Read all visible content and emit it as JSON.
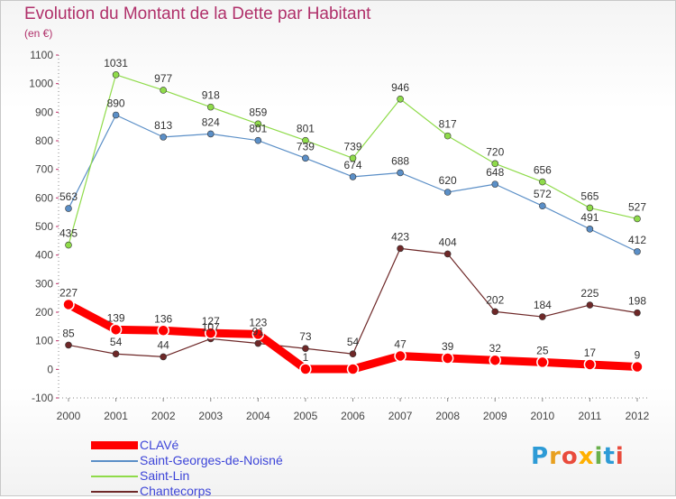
{
  "title": "Evolution du Montant de la Dette par Habitant",
  "unit": "(en €)",
  "logo": {
    "text": "Proxiti",
    "colors": [
      "#2d9bd6",
      "#e8a020",
      "#e94b3c",
      "#ffb000",
      "#6ab04c",
      "#2d9bd6",
      "#e94b3c"
    ]
  },
  "chart_data": {
    "type": "line",
    "title": "Evolution du Montant de la Dette par Habitant",
    "ylabel": "(en €)",
    "xlabel": "",
    "categories": [
      "2000",
      "2001",
      "2002",
      "2003",
      "2004",
      "2005",
      "2006",
      "2007",
      "2008",
      "2009",
      "2010",
      "2011",
      "2012"
    ],
    "ylim": [
      -100,
      1100
    ],
    "yticks": [
      -100,
      0,
      100,
      200,
      300,
      400,
      500,
      600,
      700,
      800,
      900,
      1000,
      1100
    ],
    "grid": false,
    "legend_position": "bottom-left",
    "series": [
      {
        "name": "CLAVé",
        "color": "#ff0000",
        "values": [
          227,
          139,
          136,
          127,
          123,
          1,
          1,
          47,
          39,
          32,
          25,
          17,
          9
        ],
        "labels": [
          "227",
          "139",
          "136",
          "127",
          "123",
          "1",
          "",
          "47",
          "39",
          "32",
          "25",
          "17",
          "9"
        ]
      },
      {
        "name": "Saint-Georges-de-Noisné",
        "color": "#5b8fc7",
        "values": [
          563,
          890,
          813,
          824,
          801,
          739,
          674,
          688,
          620,
          648,
          572,
          491,
          412
        ],
        "labels": [
          "563",
          "890",
          "813",
          "824",
          "801",
          "739",
          "674",
          "688",
          "620",
          "648",
          "572",
          "491",
          "412"
        ]
      },
      {
        "name": "Saint-Lin",
        "color": "#8fdb4a",
        "values": [
          435,
          1031,
          977,
          918,
          859,
          801,
          739,
          946,
          817,
          720,
          656,
          565,
          527
        ],
        "labels": [
          "435",
          "1031",
          "977",
          "918",
          "859",
          "801",
          "739",
          "946",
          "817",
          "720",
          "656",
          "565",
          "527"
        ]
      },
      {
        "name": "Chantecorps",
        "color": "#6e2828",
        "values": [
          85,
          54,
          44,
          107,
          91,
          73,
          54,
          423,
          404,
          202,
          184,
          225,
          198
        ],
        "labels": [
          "85",
          "54",
          "44",
          "107",
          "91",
          "73",
          "54",
          "423",
          "404",
          "202",
          "184",
          "225",
          "198"
        ]
      }
    ]
  }
}
